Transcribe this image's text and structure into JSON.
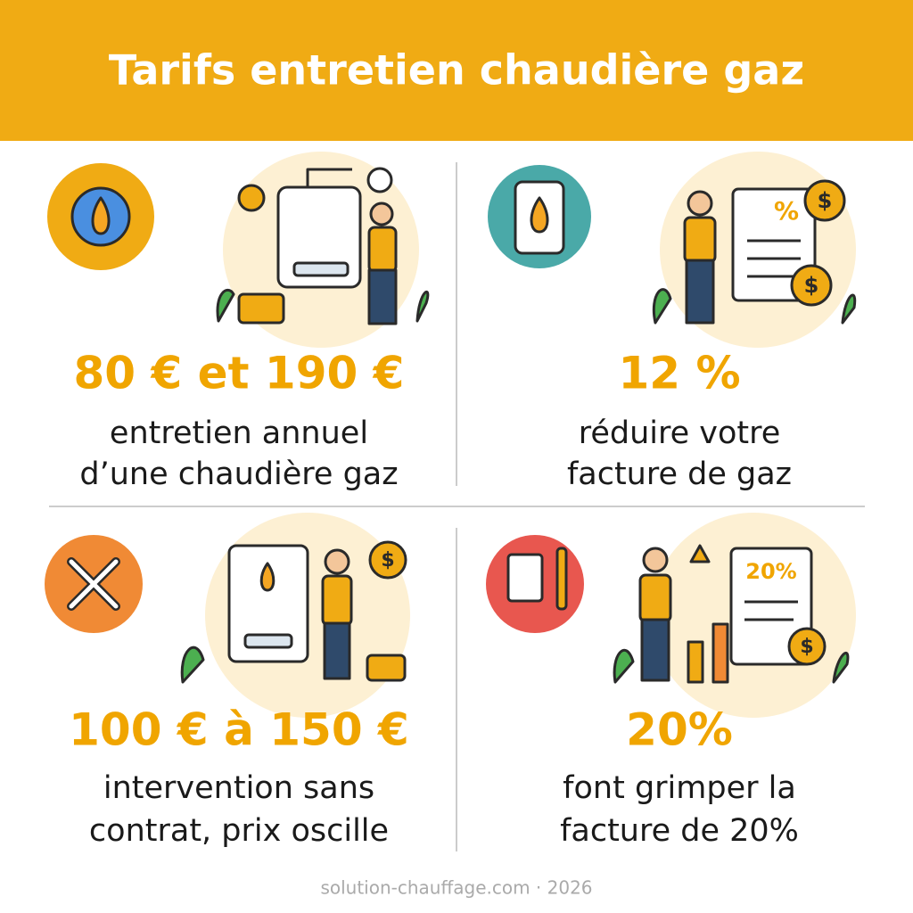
{
  "header": {
    "title": "Tarifs entretien chaudière gaz"
  },
  "cards": [
    {
      "stat": "80 € et 190 €",
      "description": [
        "entretien annuel",
        "d’une chaudière gaz"
      ],
      "illustration_labels": []
    },
    {
      "stat": "12 %",
      "description": [
        "réduire votre",
        "facture de gaz"
      ],
      "illustration_labels": [
        "%",
        "$",
        "$"
      ]
    },
    {
      "stat": "100 € à 150 €",
      "description": [
        "intervention sans",
        "contrat, prix oscille"
      ],
      "illustration_labels": [
        "$"
      ]
    },
    {
      "stat": "20%",
      "description": [
        "font grimper la",
        "facture de 20%"
      ],
      "illustration_labels": [
        "20%",
        "$"
      ]
    }
  ],
  "footer": "solution-chauffage.com · 2026"
}
